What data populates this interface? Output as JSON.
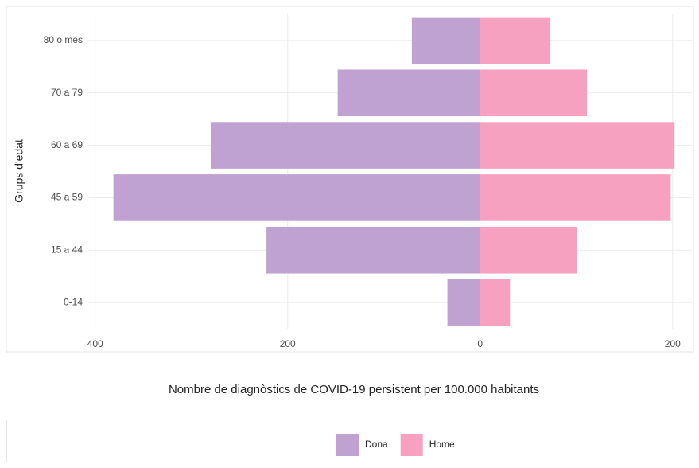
{
  "chart_data": {
    "type": "pyramid",
    "x_label": "Nombre de diagnòstics de COVID-19 persistent per 100.000 habitants",
    "y_label": "Grups d'edat",
    "categories": [
      "0-14",
      "15 a 44",
      "45 a 59",
      "60 a 69",
      "70 a 79",
      "80 o més"
    ],
    "series": [
      {
        "name": "Dona",
        "color": "#c0a2d2",
        "values": [
          -34,
          -222,
          -381,
          -280,
          -148,
          -71
        ]
      },
      {
        "name": "Home",
        "color": "#f7a1c1",
        "values": [
          31,
          101,
          198,
          202,
          111,
          73
        ]
      }
    ],
    "xlim": [
      -408,
      220
    ],
    "xticks": [
      {
        "value": -400,
        "label": "400"
      },
      {
        "value": -200,
        "label": "200"
      },
      0,
      200
    ],
    "grid": true,
    "legend": "bottom"
  }
}
